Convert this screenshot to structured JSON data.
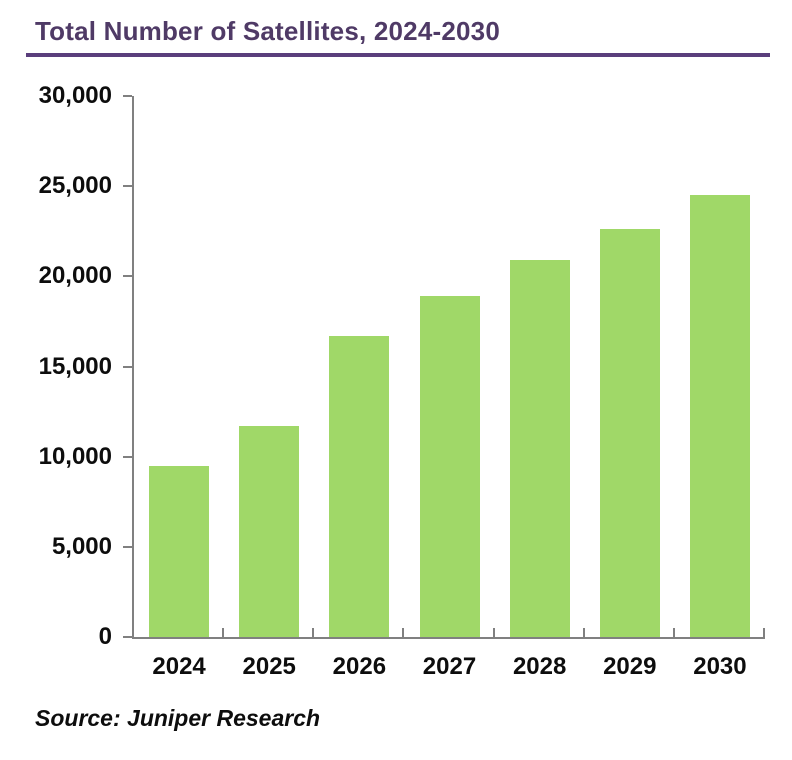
{
  "page": {
    "title": "Total Number of Satellites, 2024-2030",
    "source": "Source: Juniper Research"
  },
  "chart_data": {
    "type": "bar",
    "title": "Total Number of Satellites, 2024-2030",
    "categories": [
      "2024",
      "2025",
      "2026",
      "2027",
      "2028",
      "2029",
      "2030"
    ],
    "values": [
      9500,
      11700,
      16700,
      18900,
      20900,
      22600,
      24500
    ],
    "xlabel": "",
    "ylabel": "",
    "ylim": [
      0,
      30000
    ],
    "ytick_step": 5000,
    "ytick_labels": [
      "0",
      "5,000",
      "10,000",
      "15,000",
      "20,000",
      "25,000",
      "30,000"
    ],
    "grid": false,
    "legend": "none",
    "bar_color": "#a0d868",
    "axis_color": "#808080",
    "title_color": "#4f3a66",
    "rule_color": "#5a3e7c",
    "source": "Source: Juniper Research"
  }
}
